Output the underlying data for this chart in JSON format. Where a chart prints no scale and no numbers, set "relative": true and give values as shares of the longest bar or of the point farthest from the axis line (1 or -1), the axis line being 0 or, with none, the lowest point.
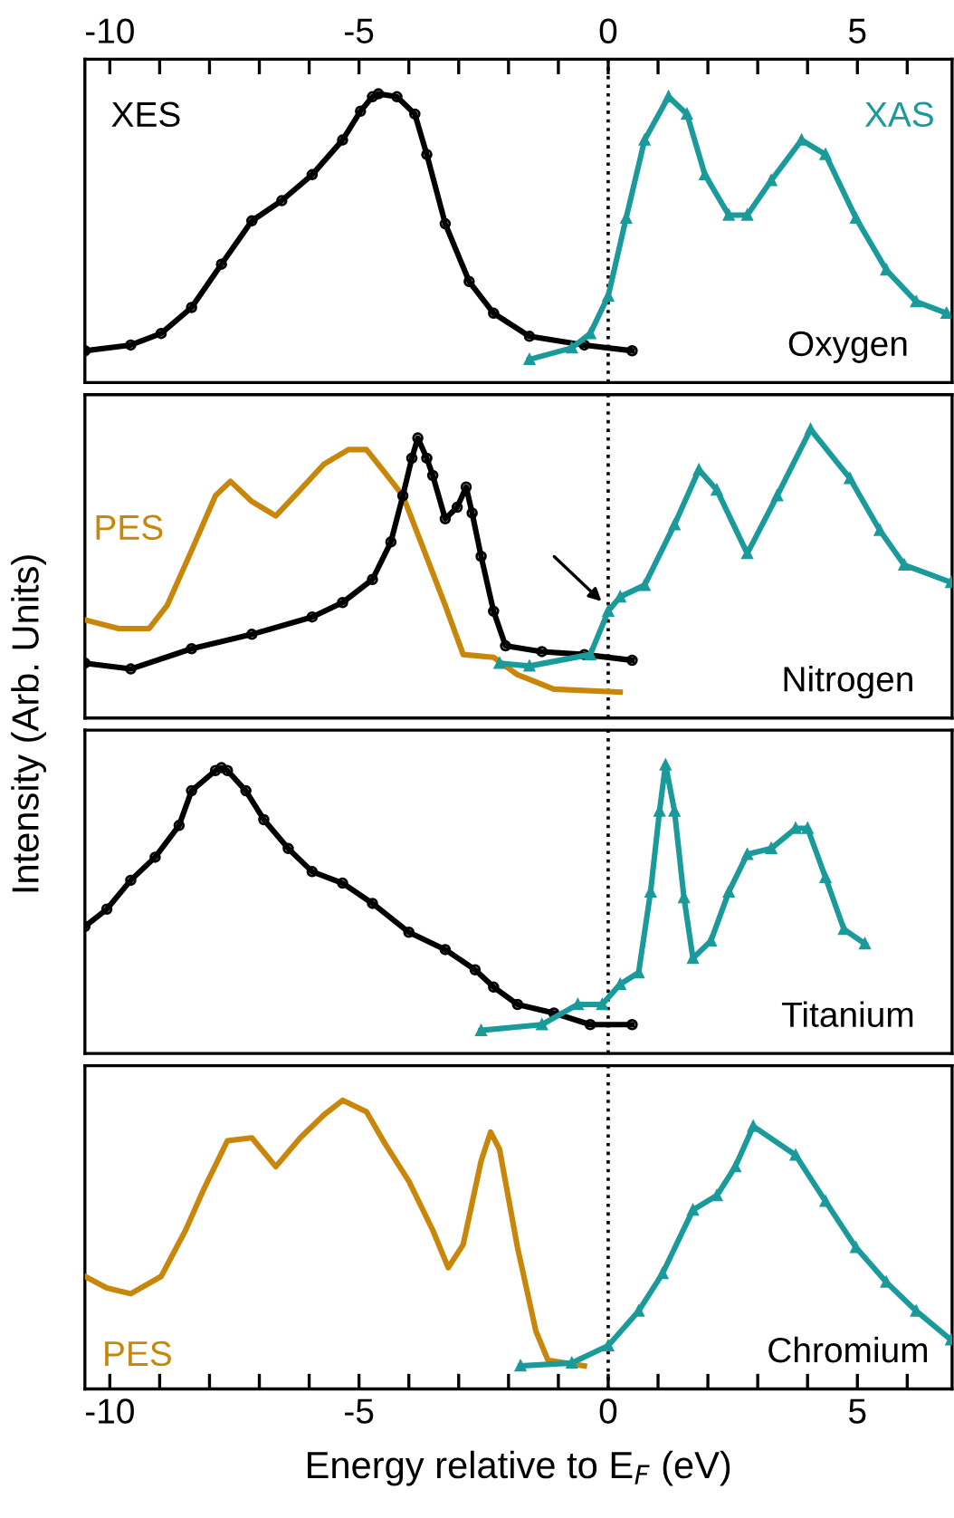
{
  "chart_data": [
    {
      "type": "line",
      "relative": true,
      "xlim": [
        -10.5,
        6.9
      ],
      "x2lim": [
        -10.5,
        6.9
      ],
      "x2ticks": [
        -10,
        {
          "value": -9,
          "label": null
        },
        {
          "value": -8,
          "label": null
        },
        {
          "value": -7,
          "label": null
        },
        {
          "value": -6,
          "label": null
        },
        -5,
        {
          "value": -4,
          "label": null
        },
        {
          "value": -3,
          "label": null
        },
        {
          "value": -2,
          "label": null
        },
        {
          "value": -1,
          "label": null
        },
        0,
        {
          "value": 1,
          "label": null
        },
        {
          "value": 2,
          "label": null
        },
        {
          "value": 3,
          "label": null
        },
        {
          "value": 4,
          "label": null
        },
        5,
        {
          "value": 6,
          "label": null
        }
      ],
      "tick_labels": false,
      "ylabel": "Intensity (Arb. Units)",
      "annotations": [
        "Oxygen"
      ],
      "ref_lines": [
        {
          "axis": "x",
          "value": 0,
          "color": "#000000",
          "line_style": "dotted"
        }
      ],
      "series": [
        {
          "name": "XES",
          "color": "#000000",
          "marker": "circle",
          "x": [
            -10.5,
            -9.58,
            -8.97,
            -8.36,
            -7.76,
            -7.15,
            -6.55,
            -5.94,
            -5.33,
            -4.97,
            -4.73,
            -4.61,
            -4.24,
            -3.88,
            -3.64,
            -3.27,
            -2.79,
            -2.3,
            -1.58,
            -0.48,
            0.48
          ],
          "values": [
            0.11,
            0.13,
            0.17,
            0.26,
            0.41,
            0.56,
            0.63,
            0.72,
            0.84,
            0.94,
            0.99,
            1,
            0.99,
            0.93,
            0.79,
            0.55,
            0.35,
            0.24,
            0.16,
            0.13,
            0.11
          ]
        },
        {
          "name": "XAS",
          "color": "#1a9a9a",
          "marker": "triangle",
          "x": [
            -1.58,
            -0.73,
            -0.36,
            0,
            0.36,
            0.73,
            1.21,
            1.58,
            1.94,
            2.42,
            2.79,
            3.27,
            3.88,
            4.36,
            4.97,
            5.58,
            6.18,
            6.79
          ],
          "values": [
            0.08,
            0.12,
            0.17,
            0.3,
            0.57,
            0.84,
            0.99,
            0.93,
            0.72,
            0.58,
            0.58,
            0.7,
            0.84,
            0.79,
            0.57,
            0.39,
            0.28,
            0.24
          ]
        }
      ]
    },
    {
      "type": "line",
      "relative": true,
      "xlim": [
        -10.5,
        6.9
      ],
      "tick_labels": false,
      "annotations": [
        "Nitrogen"
      ],
      "ref_lines": [
        {
          "axis": "x",
          "value": 0,
          "color": "#000000",
          "line_style": "dotted"
        }
      ],
      "series": [
        {
          "name": "PES",
          "color": "#c8860a",
          "marker": "none",
          "x": [
            -10.5,
            -9.82,
            -9.21,
            -8.85,
            -8.36,
            -7.88,
            -7.58,
            -7.15,
            -6.67,
            -6.18,
            -5.7,
            -5.21,
            -4.85,
            -4.48,
            -4.12,
            -3.76,
            -3.27,
            -2.91,
            -2.3,
            -1.82,
            -1.09,
            0.24
          ],
          "values": [
            0.34,
            0.31,
            0.31,
            0.39,
            0.58,
            0.77,
            0.82,
            0.75,
            0.7,
            0.79,
            0.88,
            0.93,
            0.93,
            0.85,
            0.77,
            0.61,
            0.39,
            0.22,
            0.21,
            0.15,
            0.1,
            0.09
          ]
        },
        {
          "color": "#000000",
          "marker": "circle",
          "x": [
            -10.5,
            -9.58,
            -8.36,
            -7.15,
            -5.94,
            -5.33,
            -4.73,
            -4.36,
            -4.12,
            -3.94,
            -3.82,
            -3.64,
            -3.52,
            -3.27,
            -3.03,
            -2.85,
            -2.73,
            -2.55,
            -2.3,
            -2.06,
            -1.33,
            -0.48,
            0.48
          ],
          "values": [
            0.19,
            0.17,
            0.24,
            0.29,
            0.35,
            0.4,
            0.48,
            0.61,
            0.77,
            0.9,
            0.97,
            0.9,
            0.84,
            0.69,
            0.73,
            0.8,
            0.71,
            0.56,
            0.37,
            0.25,
            0.23,
            0.22,
            0.2
          ]
        },
        {
          "color": "#1a9a9a",
          "marker": "triangle",
          "x": [
            -2.18,
            -1.58,
            -0.36,
            0,
            0.24,
            0.73,
            1.33,
            1.82,
            2.18,
            2.79,
            3.39,
            4.06,
            4.85,
            5.45,
            5.94,
            6.88
          ],
          "values": [
            0.19,
            0.18,
            0.22,
            0.37,
            0.42,
            0.46,
            0.67,
            0.86,
            0.79,
            0.57,
            0.77,
            1,
            0.83,
            0.65,
            0.53,
            0.47
          ]
        }
      ]
    },
    {
      "type": "line",
      "relative": true,
      "xlim": [
        -10.5,
        6.9
      ],
      "tick_labels": false,
      "annotations": [
        "Titanium"
      ],
      "ref_lines": [
        {
          "axis": "x",
          "value": 0,
          "color": "#000000",
          "line_style": "dotted"
        }
      ],
      "series": [
        {
          "color": "#000000",
          "marker": "circle",
          "x": [
            -10.5,
            -10.06,
            -9.58,
            -9.09,
            -8.61,
            -8.36,
            -7.88,
            -7.76,
            -7.64,
            -7.27,
            -6.91,
            -6.42,
            -5.94,
            -5.33,
            -4.73,
            -4.0,
            -3.27,
            -2.67,
            -2.3,
            -1.82,
            -1.09,
            -0.36,
            0.48
          ],
          "values": [
            0.44,
            0.5,
            0.6,
            0.68,
            0.79,
            0.91,
            0.98,
            0.99,
            0.98,
            0.91,
            0.81,
            0.71,
            0.63,
            0.59,
            0.52,
            0.42,
            0.36,
            0.29,
            0.23,
            0.17,
            0.14,
            0.1,
            0.1
          ]
        },
        {
          "color": "#1a9a9a",
          "marker": "triangle",
          "x": [
            -2.55,
            -1.33,
            -0.61,
            -0.12,
            0.24,
            0.61,
            0.85,
            1.03,
            1.15,
            1.33,
            1.52,
            1.7,
            2.06,
            2.42,
            2.79,
            3.27,
            3.76,
            4.0,
            4.36,
            4.73,
            5.15
          ],
          "values": [
            0.08,
            0.1,
            0.17,
            0.17,
            0.24,
            0.28,
            0.56,
            0.84,
            1,
            0.84,
            0.54,
            0.33,
            0.39,
            0.56,
            0.69,
            0.71,
            0.78,
            0.78,
            0.61,
            0.43,
            0.38
          ]
        }
      ]
    },
    {
      "type": "line",
      "relative": true,
      "xlim": [
        -10.5,
        6.9
      ],
      "xticks": [
        -10,
        {
          "value": -9,
          "label": null
        },
        {
          "value": -8,
          "label": null
        },
        {
          "value": -7,
          "label": null
        },
        {
          "value": -6,
          "label": null
        },
        -5,
        {
          "value": -4,
          "label": null
        },
        {
          "value": -3,
          "label": null
        },
        {
          "value": -2,
          "label": null
        },
        {
          "value": -1,
          "label": null
        },
        0,
        {
          "value": 1,
          "label": null
        },
        {
          "value": 2,
          "label": null
        },
        {
          "value": 3,
          "label": null
        },
        {
          "value": 4,
          "label": null
        },
        5,
        {
          "value": 6,
          "label": null
        }
      ],
      "tick_labels": "x",
      "xlabel": "Energy relative to E$_{F}$ (eV)",
      "annotations": [
        "Chromium"
      ],
      "ref_lines": [
        {
          "axis": "x",
          "value": 0,
          "color": "#000000",
          "line_style": "dotted"
        }
      ],
      "series": [
        {
          "name": "PES",
          "color": "#c8860a",
          "marker": "none",
          "x": [
            -10.5,
            -10.06,
            -9.58,
            -8.97,
            -8.48,
            -8.12,
            -7.64,
            -7.15,
            -6.67,
            -6.18,
            -5.7,
            -5.33,
            -4.85,
            -4.48,
            -4.0,
            -3.52,
            -3.21,
            -2.91,
            -2.55,
            -2.36,
            -2.18,
            -1.82,
            -1.45,
            -1.21,
            -0.48
          ],
          "values": [
            0.39,
            0.35,
            0.33,
            0.39,
            0.55,
            0.69,
            0.86,
            0.87,
            0.77,
            0.87,
            0.95,
            1,
            0.96,
            0.85,
            0.72,
            0.55,
            0.42,
            0.5,
            0.79,
            0.89,
            0.83,
            0.49,
            0.2,
            0.1,
            0.08
          ]
        },
        {
          "color": "#1a9a9a",
          "marker": "triangle",
          "x": [
            -1.76,
            -0.73,
            0,
            0.61,
            1.09,
            1.7,
            2.18,
            2.55,
            2.91,
            3.76,
            4.36,
            4.97,
            5.58,
            6.18,
            6.88
          ],
          "values": [
            0.08,
            0.09,
            0.15,
            0.27,
            0.4,
            0.62,
            0.67,
            0.77,
            0.91,
            0.81,
            0.65,
            0.49,
            0.37,
            0.27,
            0.17
          ]
        }
      ]
    }
  ]
}
